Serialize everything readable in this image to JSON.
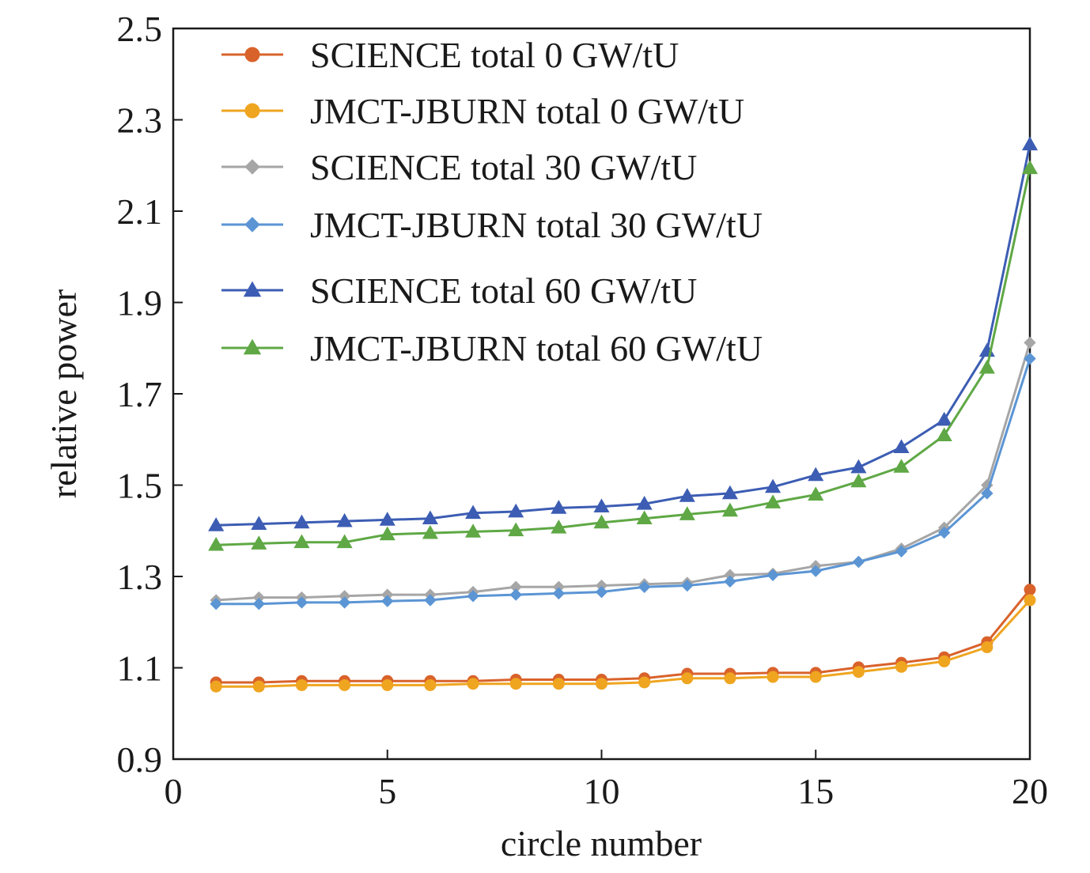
{
  "chart_data": {
    "type": "line",
    "title": "",
    "xlabel": "circle number",
    "ylabel": "relative power",
    "xlim": [
      0,
      20
    ],
    "ylim": [
      0.9,
      2.5
    ],
    "xticks": [
      0,
      5,
      10,
      15,
      20
    ],
    "xtick_labels": [
      "0",
      "5",
      "10",
      "15",
      "20"
    ],
    "yticks": [
      0.9,
      1.1,
      1.3,
      1.5,
      1.7,
      1.9,
      2.1,
      2.3,
      2.5
    ],
    "ytick_labels": [
      "0.9",
      "1.1",
      "1.3",
      "1.5",
      "1.7",
      "1.9",
      "2.1",
      "2.3",
      "2.5"
    ],
    "grid": false,
    "legend_position": "top-left",
    "x": [
      1,
      2,
      3,
      4,
      5,
      6,
      7,
      8,
      9,
      10,
      11,
      12,
      13,
      14,
      15,
      16,
      17,
      18,
      19,
      20
    ],
    "series": [
      {
        "name": "SCIENCE total 0 GW/tU",
        "color": "#d9622b",
        "marker": "circle",
        "values": [
          1.068,
          1.068,
          1.071,
          1.071,
          1.071,
          1.071,
          1.071,
          1.074,
          1.074,
          1.074,
          1.077,
          1.087,
          1.087,
          1.089,
          1.089,
          1.101,
          1.111,
          1.123,
          1.156,
          1.271
        ]
      },
      {
        "name": "JMCT-JBURN total 0 GW/tU",
        "color": "#efa520",
        "marker": "circle",
        "values": [
          1.059,
          1.059,
          1.062,
          1.062,
          1.062,
          1.062,
          1.065,
          1.065,
          1.065,
          1.065,
          1.068,
          1.077,
          1.077,
          1.08,
          1.08,
          1.091,
          1.102,
          1.114,
          1.145,
          1.248
        ]
      },
      {
        "name": "SCIENCE total 30 GW/tU",
        "color": "#a6a6a6",
        "marker": "diamond",
        "values": [
          1.248,
          1.254,
          1.254,
          1.257,
          1.26,
          1.26,
          1.266,
          1.277,
          1.277,
          1.28,
          1.283,
          1.286,
          1.303,
          1.306,
          1.323,
          1.332,
          1.361,
          1.407,
          1.5,
          1.812
        ]
      },
      {
        "name": "JMCT-JBURN total 30 GW/tU",
        "color": "#5b95d4",
        "marker": "diamond",
        "values": [
          1.24,
          1.24,
          1.243,
          1.243,
          1.246,
          1.248,
          1.257,
          1.26,
          1.263,
          1.266,
          1.277,
          1.28,
          1.289,
          1.303,
          1.312,
          1.332,
          1.355,
          1.396,
          1.482,
          1.777
        ]
      },
      {
        "name": "SCIENCE total 60 GW/tU",
        "color": "#3c5db3",
        "marker": "triangle",
        "values": [
          1.412,
          1.415,
          1.418,
          1.421,
          1.424,
          1.427,
          1.439,
          1.442,
          1.45,
          1.453,
          1.459,
          1.476,
          1.482,
          1.496,
          1.522,
          1.539,
          1.583,
          1.643,
          1.794,
          2.246
        ]
      },
      {
        "name": "JMCT-JBURN total 60 GW/tU",
        "color": "#5fa845",
        "marker": "triangle",
        "values": [
          1.369,
          1.372,
          1.375,
          1.375,
          1.392,
          1.395,
          1.398,
          1.401,
          1.407,
          1.418,
          1.427,
          1.436,
          1.444,
          1.462,
          1.479,
          1.508,
          1.54,
          1.609,
          1.757,
          2.194
        ]
      }
    ]
  }
}
